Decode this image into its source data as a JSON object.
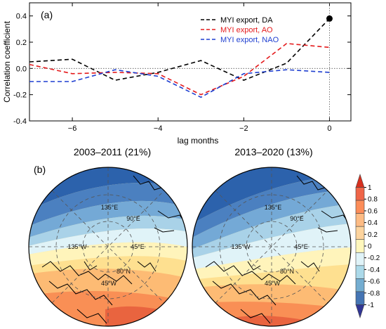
{
  "panel_a": {
    "label": "(a)",
    "ylabel": "Correlation coefficient",
    "xlabel": "lag months"
  },
  "panel_b": {
    "label": "(b)",
    "left_title": "2003–2011 (21%)",
    "right_title": "2013–2020 (13%)",
    "map_labels": [
      "135°E",
      "90°E",
      "135°W",
      "45°E",
      "80°N",
      "45°W"
    ],
    "colorbar_ticks": [
      "1",
      "0.8",
      "0.6",
      "0.4",
      "0.2",
      "0",
      "-0.2",
      "-0.4",
      "-0.6",
      "-0.8",
      "-1"
    ],
    "colorbar_colors": [
      "#d7301f",
      "#ef6548",
      "#fc8d59",
      "#fdbb84",
      "#fdd49e",
      "#fff7bc",
      "#e0f3f8",
      "#abd9e9",
      "#74add1",
      "#4575b4",
      "#313695"
    ]
  },
  "chart_data": [
    {
      "type": "line",
      "title": "",
      "xlabel": "lag months",
      "ylabel": "Correlation coefficient",
      "xlim": [
        -7,
        0.5
      ],
      "ylim": [
        -0.4,
        0.5
      ],
      "xticks": [
        -6,
        -4,
        -2,
        0
      ],
      "yticks": [
        -0.4,
        -0.2,
        0.0,
        0.2,
        0.4
      ],
      "legend_position": "top-right",
      "reference_lines": {
        "y": 0,
        "x": 0
      },
      "series": [
        {
          "name": "MYI export, DA",
          "color": "#000000",
          "x": [
            -7,
            -6,
            -5,
            -4,
            -3,
            -2,
            -1,
            0
          ],
          "y": [
            0.05,
            0.07,
            -0.09,
            -0.03,
            0.06,
            -0.09,
            0.04,
            0.38
          ]
        },
        {
          "name": "MYI export, AO",
          "color": "#e41a1c",
          "x": [
            -7,
            -6,
            -5,
            -4,
            -3,
            -2,
            -1,
            0
          ],
          "y": [
            0.03,
            -0.04,
            -0.03,
            -0.04,
            -0.2,
            -0.06,
            0.19,
            0.16
          ]
        },
        {
          "name": "MYI export, NAO",
          "color": "#1f3fd0",
          "x": [
            -7,
            -6,
            -5,
            -4,
            -3,
            -2,
            -1,
            0
          ],
          "y": [
            -0.1,
            -0.1,
            -0.01,
            -0.06,
            -0.22,
            -0.04,
            -0.01,
            -0.03
          ]
        }
      ],
      "highlight_point": {
        "x": 0,
        "y": 0.38
      }
    }
  ]
}
